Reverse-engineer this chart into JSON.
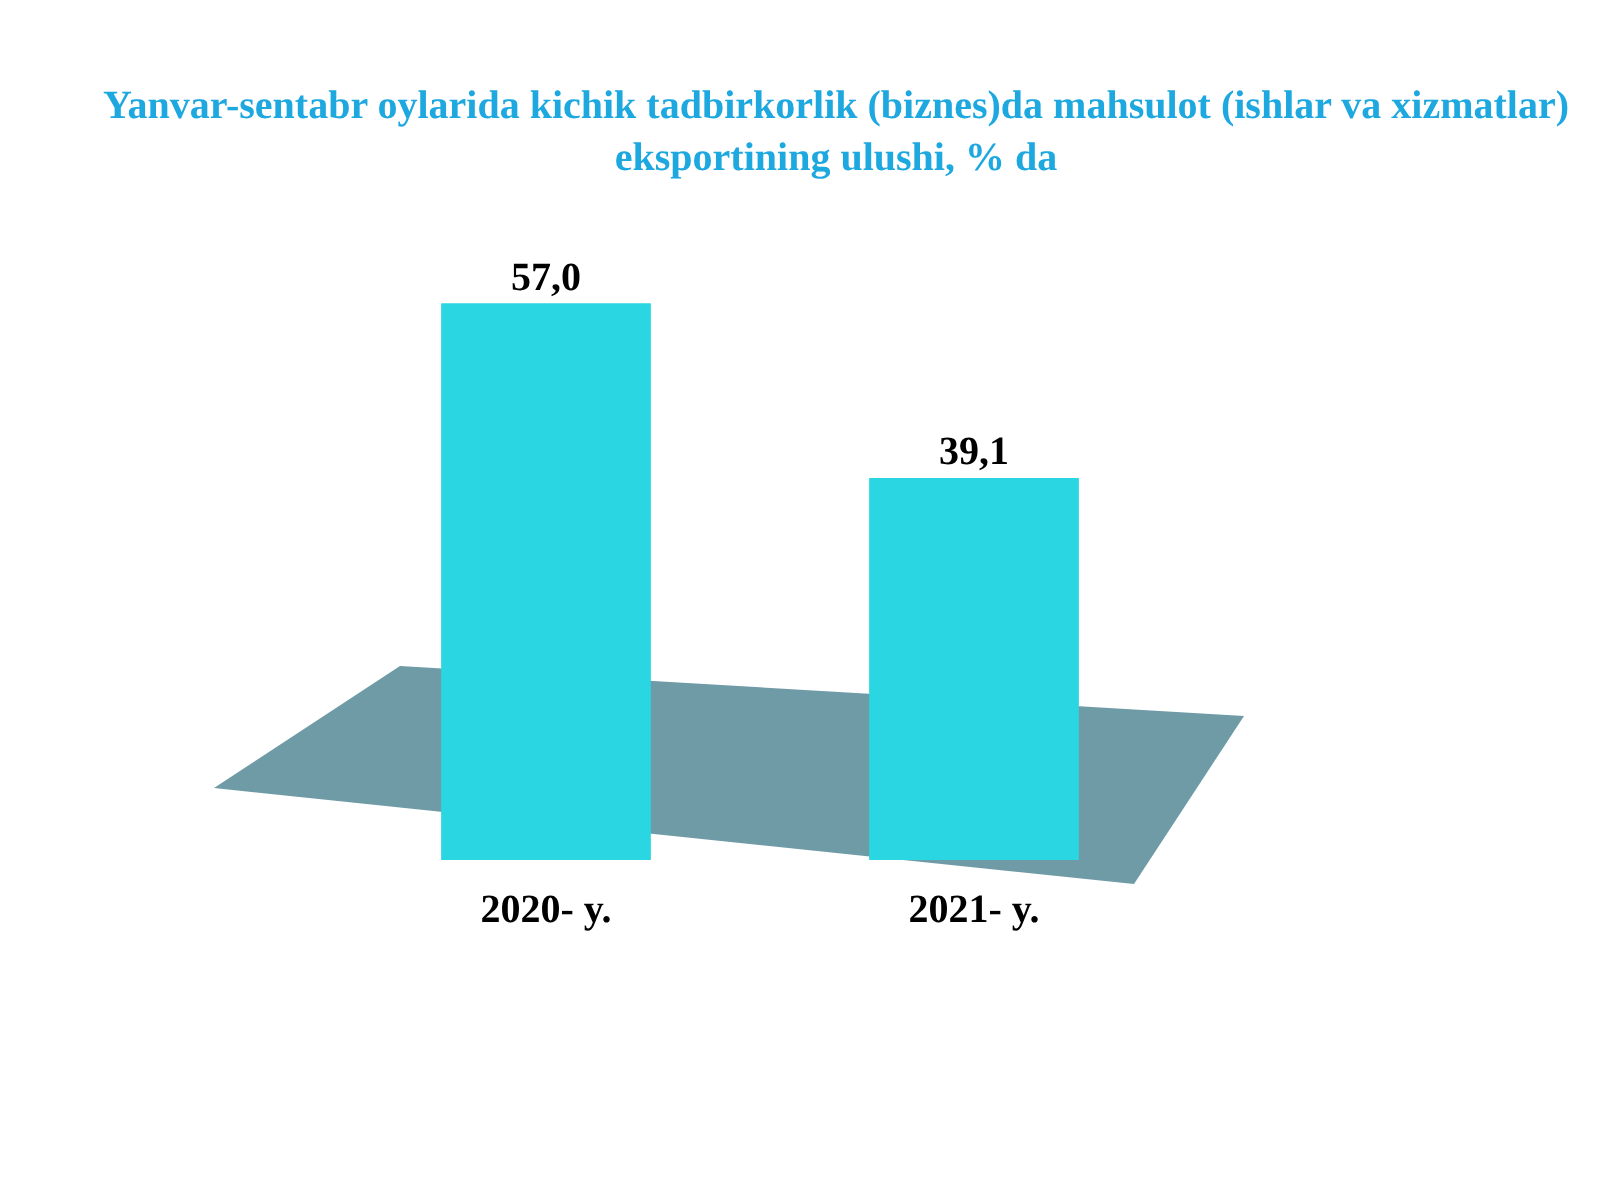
{
  "chart_data": {
    "type": "bar",
    "title": "Yanvar-sentabr oylarida kichik tadbirkorlik (biznes)da mahsulot (ishlar va xizmatlar) eksportining ulushi, % da",
    "categories": [
      "2020- y.",
      "2021- y."
    ],
    "values": [
      57.0,
      39.1
    ],
    "value_labels": [
      "57,0",
      "39,1"
    ],
    "color": "#2ad6e2"
  }
}
